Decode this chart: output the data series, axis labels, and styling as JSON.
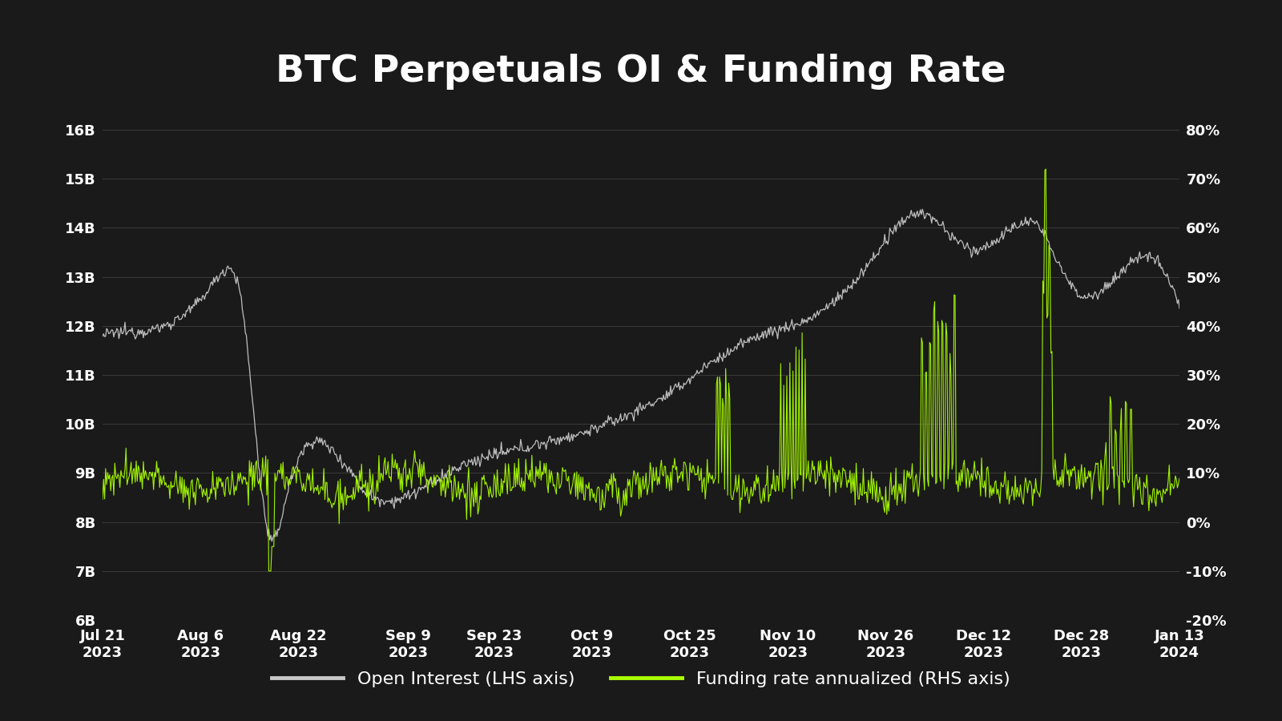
{
  "title": "BTC Perpetuals OI & Funding Rate",
  "background_color": "#1a1a1a",
  "text_color": "#ffffff",
  "grid_color": "#404040",
  "oi_color": "#c8c8c8",
  "funding_color": "#aaff00",
  "title_fontsize": 34,
  "legend_fontsize": 16,
  "tick_fontsize": 13,
  "lhs_ylim": [
    6000000000,
    16000000000
  ],
  "rhs_ylim": [
    -0.2,
    0.8
  ],
  "lhs_yticks": [
    6000000000.0,
    7000000000.0,
    8000000000.0,
    9000000000.0,
    10000000000.0,
    11000000000.0,
    12000000000.0,
    13000000000.0,
    14000000000.0,
    15000000000.0,
    16000000000.0
  ],
  "lhs_yticklabels": [
    "6B",
    "7B",
    "8B",
    "9B",
    "10B",
    "11B",
    "12B",
    "13B",
    "14B",
    "15B",
    "16B"
  ],
  "rhs_yticks": [
    -0.2,
    -0.1,
    0.0,
    0.1,
    0.2,
    0.3,
    0.4,
    0.5,
    0.6,
    0.7,
    0.8
  ],
  "rhs_yticklabels": [
    "-20%",
    "-10%",
    "0%",
    "10%",
    "20%",
    "30%",
    "40%",
    "50%",
    "60%",
    "70%",
    "80%"
  ],
  "legend_oi": "Open Interest (LHS axis)",
  "legend_funding": "Funding rate annualized (RHS axis)"
}
